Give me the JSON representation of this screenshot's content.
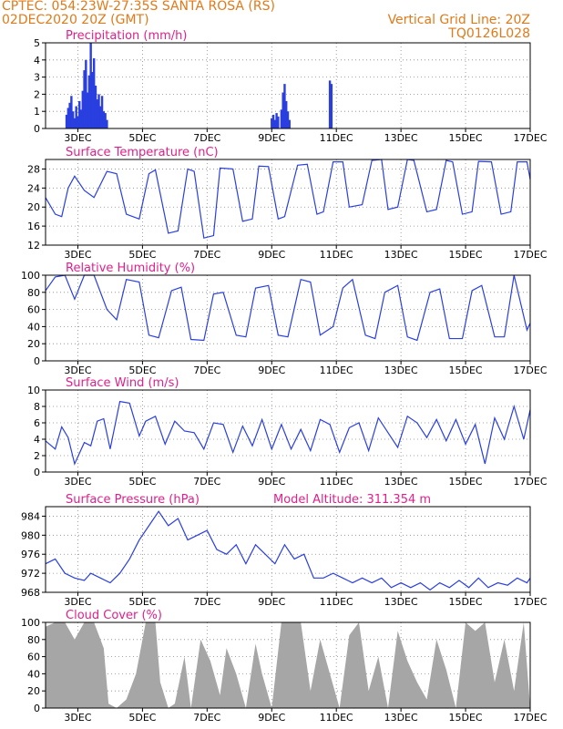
{
  "header": {
    "line1_left": "CPTEC:  054:23W-27:35S  SANTA ROSA (RS)",
    "line2_left": "02DEC2020 20Z (GMT)",
    "line1_right": "Vertical Grid Line: 20Z",
    "line2_right": "TQ0126L028"
  },
  "colors": {
    "header": "#e07a1a",
    "title": "#e0208a",
    "series": "#2a3fe0",
    "cloud": "#a6a6a6",
    "axis": "#000000",
    "grid": "#888888"
  },
  "x_ticks": [
    "3DEC",
    "5DEC",
    "7DEC",
    "9DEC",
    "11DEC",
    "13DEC",
    "15DEC",
    "17DEC"
  ],
  "chart_data": [
    {
      "type": "bar",
      "title": "Precipitation (mm/h)",
      "ylim": [
        0,
        5
      ],
      "yticks": [
        0,
        1,
        2,
        3,
        4,
        5
      ],
      "points": [
        [
          2.65,
          0.8
        ],
        [
          2.7,
          1.2
        ],
        [
          2.75,
          1.5
        ],
        [
          2.8,
          1.9
        ],
        [
          2.85,
          1.0
        ],
        [
          2.9,
          0.6
        ],
        [
          2.95,
          1.3
        ],
        [
          3.0,
          0.7
        ],
        [
          3.05,
          1.6
        ],
        [
          3.1,
          1.1
        ],
        [
          3.15,
          2.2
        ],
        [
          3.2,
          3.4
        ],
        [
          3.25,
          4.0
        ],
        [
          3.3,
          2.1
        ],
        [
          3.35,
          3.1
        ],
        [
          3.4,
          5.0
        ],
        [
          3.45,
          3.3
        ],
        [
          3.5,
          4.1
        ],
        [
          3.55,
          2.5
        ],
        [
          3.6,
          1.7
        ],
        [
          3.65,
          2.0
        ],
        [
          3.7,
          1.3
        ],
        [
          3.75,
          1.9
        ],
        [
          3.8,
          1.0
        ],
        [
          3.85,
          0.9
        ],
        [
          3.9,
          0.5
        ],
        [
          9.0,
          0.6
        ],
        [
          9.05,
          0.8
        ],
        [
          9.1,
          0.5
        ],
        [
          9.15,
          0.9
        ],
        [
          9.2,
          0.7
        ],
        [
          9.3,
          1.1
        ],
        [
          9.35,
          2.1
        ],
        [
          9.4,
          2.6
        ],
        [
          9.45,
          1.6
        ],
        [
          9.5,
          1.0
        ],
        [
          9.55,
          0.5
        ],
        [
          10.8,
          2.8
        ],
        [
          10.85,
          2.6
        ]
      ]
    },
    {
      "type": "line",
      "title": "Surface Temperature (nC)",
      "ylim": [
        12,
        30
      ],
      "yticks": [
        12,
        16,
        20,
        24,
        28
      ],
      "x": [
        2.0,
        2.3,
        2.5,
        2.7,
        2.9,
        3.2,
        3.5,
        3.9,
        4.2,
        4.5,
        4.9,
        5.2,
        5.4,
        5.8,
        6.1,
        6.4,
        6.6,
        6.9,
        7.2,
        7.4,
        7.8,
        8.1,
        8.4,
        8.6,
        8.9,
        9.2,
        9.4,
        9.8,
        10.1,
        10.4,
        10.6,
        10.9,
        11.2,
        11.4,
        11.8,
        12.1,
        12.4,
        12.6,
        12.9,
        13.2,
        13.4,
        13.8,
        14.1,
        14.4,
        14.6,
        14.9,
        15.2,
        15.4,
        15.8,
        16.1,
        16.4,
        16.6,
        16.9,
        17.0
      ],
      "y": [
        22,
        18.5,
        18,
        24,
        26.5,
        23.5,
        22,
        27.5,
        27,
        18.5,
        17.5,
        27,
        27.8,
        14.5,
        15,
        28,
        27.5,
        13.5,
        14,
        28.2,
        28,
        17,
        17.5,
        28.6,
        28.5,
        17.5,
        18,
        28.8,
        29,
        18.5,
        19,
        29.5,
        29.5,
        20,
        20.5,
        29.8,
        30,
        19.5,
        20,
        30,
        29.8,
        19,
        19.5,
        29.8,
        29.5,
        18.5,
        19,
        29.6,
        29.5,
        18.5,
        19,
        29.5,
        29.5,
        25.8
      ]
    },
    {
      "type": "line",
      "title": "Relative Humidity (%)",
      "ylim": [
        0,
        100
      ],
      "yticks": [
        0,
        20,
        40,
        60,
        80,
        100
      ],
      "x": [
        2.0,
        2.3,
        2.6,
        2.9,
        3.2,
        3.5,
        3.9,
        4.2,
        4.5,
        4.9,
        5.2,
        5.5,
        5.9,
        6.2,
        6.5,
        6.9,
        7.2,
        7.5,
        7.9,
        8.2,
        8.5,
        8.9,
        9.2,
        9.5,
        9.9,
        10.2,
        10.5,
        10.9,
        11.2,
        11.5,
        11.9,
        12.2,
        12.5,
        12.9,
        13.2,
        13.5,
        13.9,
        14.2,
        14.5,
        14.9,
        15.2,
        15.5,
        15.9,
        16.2,
        16.5,
        16.9,
        17.0
      ],
      "y": [
        82,
        98,
        100,
        72,
        100,
        100,
        60,
        48,
        95,
        92,
        30,
        27,
        82,
        86,
        25,
        24,
        78,
        80,
        30,
        28,
        85,
        88,
        30,
        28,
        95,
        92,
        30,
        40,
        85,
        95,
        30,
        26,
        80,
        88,
        28,
        24,
        80,
        84,
        26,
        26,
        82,
        88,
        28,
        28,
        100,
        36,
        44
      ]
    },
    {
      "type": "line",
      "title": "Surface Wind (m/s)",
      "ylim": [
        0,
        10
      ],
      "yticks": [
        0,
        2,
        4,
        6,
        8,
        10
      ],
      "x": [
        2.0,
        2.3,
        2.5,
        2.7,
        2.9,
        3.2,
        3.4,
        3.6,
        3.8,
        4.0,
        4.3,
        4.6,
        4.9,
        5.1,
        5.4,
        5.7,
        6.0,
        6.3,
        6.6,
        6.9,
        7.2,
        7.5,
        7.8,
        8.1,
        8.4,
        8.7,
        9.0,
        9.3,
        9.6,
        9.9,
        10.2,
        10.5,
        10.8,
        11.1,
        11.4,
        11.7,
        12.0,
        12.3,
        12.6,
        12.9,
        13.2,
        13.5,
        13.8,
        14.1,
        14.4,
        14.7,
        15.0,
        15.3,
        15.6,
        15.9,
        16.2,
        16.5,
        16.8,
        17.0
      ],
      "y": [
        3.8,
        2.8,
        5.5,
        4.2,
        1.0,
        3.6,
        3.2,
        6.2,
        6.5,
        2.8,
        8.6,
        8.4,
        4.4,
        6.2,
        6.8,
        3.4,
        6.2,
        5.0,
        4.8,
        2.8,
        6.0,
        5.8,
        2.4,
        5.6,
        3.2,
        6.4,
        2.8,
        5.8,
        2.8,
        5.2,
        2.6,
        6.4,
        5.8,
        2.4,
        5.4,
        6.0,
        2.6,
        6.6,
        4.8,
        3.0,
        6.8,
        6.0,
        4.2,
        6.4,
        3.8,
        6.4,
        3.4,
        5.8,
        1.0,
        6.6,
        4.0,
        8.0,
        4.0,
        7.6
      ]
    },
    {
      "type": "line",
      "title": "Surface Pressure (hPa)",
      "subtitle": "Model Altitude: 311.354 m",
      "ylim": [
        968,
        986
      ],
      "yticks": [
        968,
        972,
        976,
        980,
        984
      ],
      "x": [
        2.0,
        2.3,
        2.6,
        2.9,
        3.2,
        3.4,
        3.7,
        4.0,
        4.3,
        4.6,
        4.9,
        5.2,
        5.5,
        5.8,
        6.1,
        6.4,
        6.7,
        7.0,
        7.3,
        7.6,
        7.9,
        8.2,
        8.5,
        8.8,
        9.1,
        9.4,
        9.7,
        10.0,
        10.3,
        10.6,
        10.9,
        11.2,
        11.5,
        11.8,
        12.1,
        12.4,
        12.7,
        13.0,
        13.3,
        13.6,
        13.9,
        14.2,
        14.5,
        14.8,
        15.1,
        15.4,
        15.7,
        16.0,
        16.3,
        16.6,
        16.9,
        17.0
      ],
      "y": [
        974,
        975,
        972,
        971,
        970.5,
        972,
        971,
        970,
        972,
        975,
        979,
        982,
        985,
        982,
        983.5,
        979,
        980,
        981,
        977,
        976,
        978,
        974,
        978,
        976,
        974,
        978,
        975,
        976,
        971,
        971,
        972,
        971,
        970,
        971,
        970,
        971,
        969,
        970,
        969,
        970,
        968.5,
        970,
        969,
        970.5,
        969,
        971,
        969,
        970,
        969.5,
        971,
        970,
        971
      ]
    },
    {
      "type": "area",
      "title": "Cloud Cover (%)",
      "ylim": [
        0,
        100
      ],
      "yticks": [
        0,
        20,
        40,
        60,
        80,
        100
      ],
      "x": [
        2.0,
        2.3,
        2.6,
        2.9,
        3.2,
        3.5,
        3.8,
        3.95,
        4.2,
        4.5,
        4.8,
        5.1,
        5.4,
        5.55,
        5.8,
        6.0,
        6.3,
        6.5,
        6.8,
        7.1,
        7.4,
        7.6,
        7.9,
        8.2,
        8.5,
        8.7,
        9.0,
        9.3,
        9.6,
        9.9,
        10.2,
        10.5,
        10.8,
        11.1,
        11.4,
        11.7,
        12.0,
        12.3,
        12.6,
        12.9,
        13.2,
        13.5,
        13.8,
        14.1,
        14.4,
        14.7,
        15.0,
        15.3,
        15.6,
        15.9,
        16.2,
        16.5,
        16.8,
        17.0
      ],
      "y": [
        95,
        100,
        100,
        80,
        100,
        100,
        70,
        5,
        0,
        10,
        40,
        100,
        100,
        30,
        0,
        5,
        60,
        0,
        80,
        55,
        15,
        70,
        40,
        0,
        75,
        40,
        0,
        100,
        100,
        100,
        20,
        80,
        40,
        0,
        85,
        100,
        20,
        60,
        0,
        90,
        55,
        30,
        10,
        80,
        45,
        0,
        100,
        90,
        100,
        30,
        80,
        20,
        100,
        0
      ]
    }
  ]
}
